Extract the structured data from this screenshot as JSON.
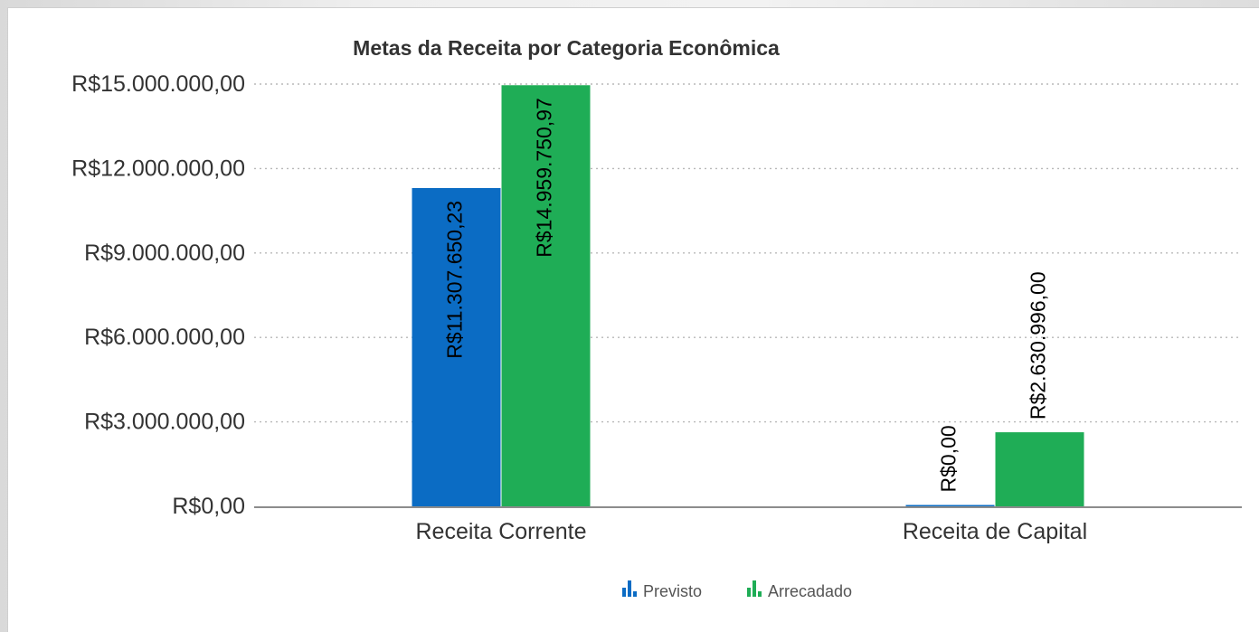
{
  "chart_data": {
    "type": "bar",
    "title": "Metas da Receita por Categoria Econômica",
    "xlabel": "",
    "ylabel": "",
    "categories": [
      "Receita Corrente",
      "Receita de Capital"
    ],
    "series": [
      {
        "name": "Previsto",
        "color": "#0b6cc4",
        "values": [
          11307650.23,
          0
        ],
        "labels": [
          "R$11.307.650,23",
          "R$0,00"
        ]
      },
      {
        "name": "Arrecadado",
        "color": "#1fad56",
        "values": [
          14959750.97,
          2630996.0
        ],
        "labels": [
          "R$14.959.750,97",
          "R$2.630.996,00"
        ]
      }
    ],
    "ylim": [
      0,
      15000000
    ],
    "yticks": [
      0,
      3000000,
      6000000,
      9000000,
      12000000,
      15000000
    ],
    "ytick_labels": [
      "R$0,00",
      "R$3.000.000,00",
      "R$6.000.000,00",
      "R$9.000.000,00",
      "R$12.000.000,00",
      "R$15.000.000,00"
    ],
    "grid": true,
    "legend_position": "bottom-center"
  }
}
